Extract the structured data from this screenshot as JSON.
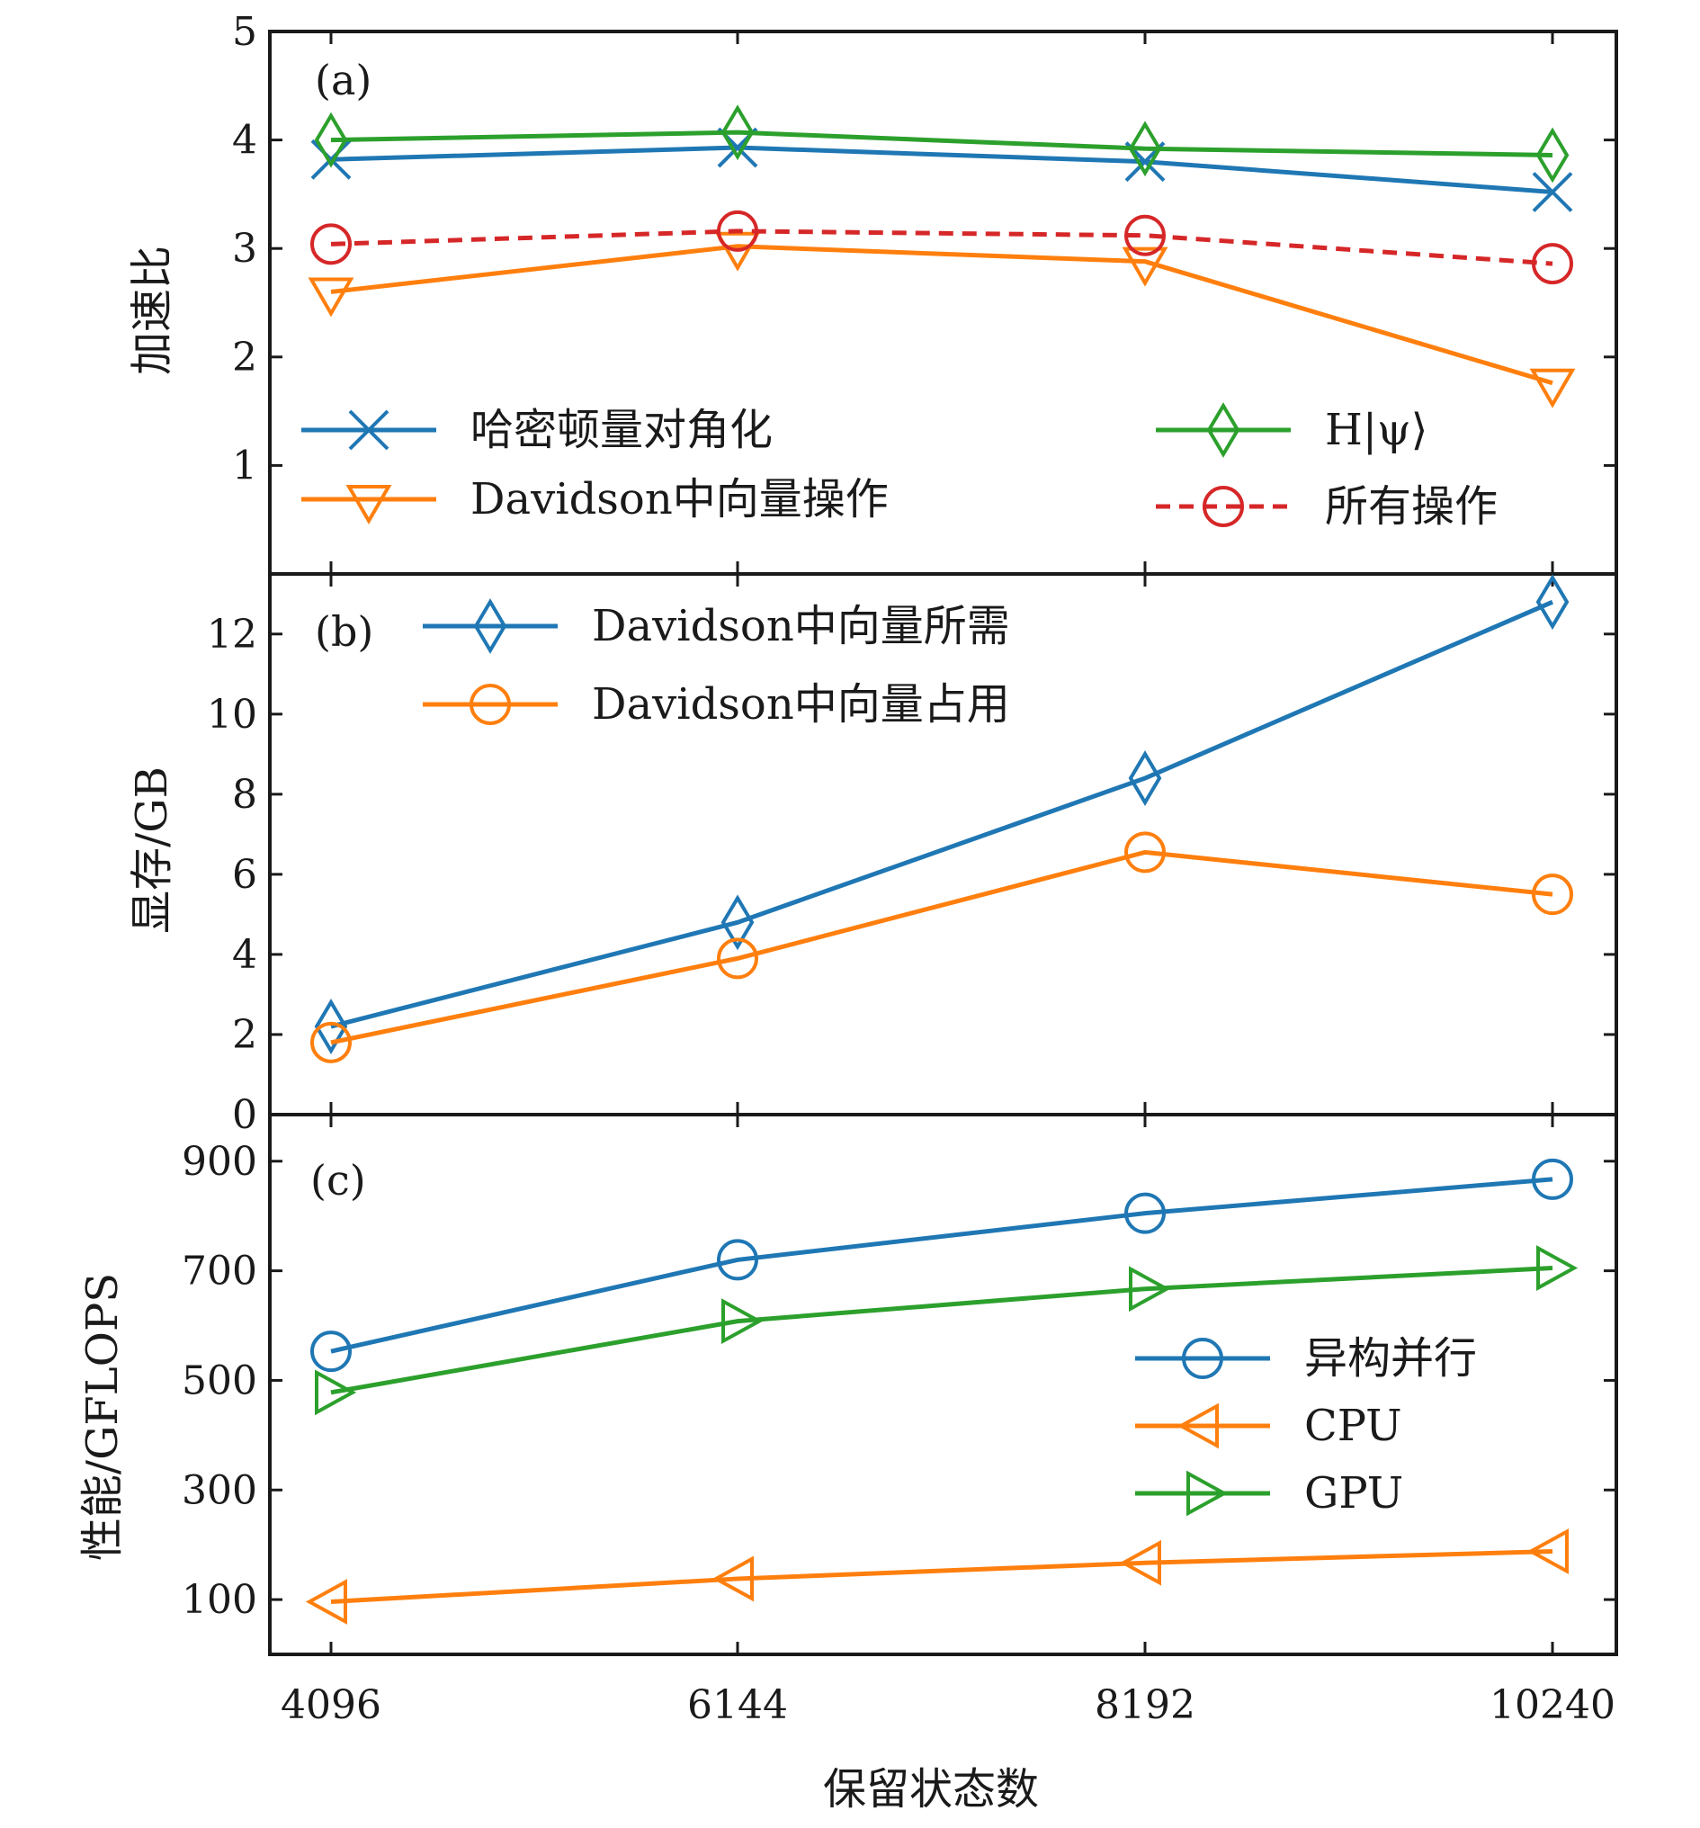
{
  "chart_data": [
    {
      "panel": "(a)",
      "type": "line",
      "x": [
        4096,
        6144,
        8192,
        10240
      ],
      "ylabel": "加速比",
      "ylim": [
        0,
        5
      ],
      "yticks": [
        1,
        2,
        3,
        4,
        5
      ],
      "series": [
        {
          "name": "哈密顿量对角化",
          "values": [
            3.82,
            3.93,
            3.8,
            3.52
          ],
          "color": "#1f77b4",
          "marker": "x",
          "dash": false
        },
        {
          "name": "Davidson中向量操作",
          "values": [
            2.6,
            3.02,
            2.88,
            1.76
          ],
          "color": "#ff7f0e",
          "marker": "triangle-down",
          "dash": false
        },
        {
          "name": "H|ψ⟩",
          "values": [
            4.0,
            4.07,
            3.92,
            3.86
          ],
          "color": "#2ca02c",
          "marker": "diamond",
          "dash": false
        },
        {
          "name": "所有操作",
          "values": [
            3.04,
            3.16,
            3.12,
            2.86
          ],
          "color": "#d62728",
          "marker": "circle",
          "dash": true
        }
      ],
      "legend": "bottom"
    },
    {
      "panel": "(b)",
      "type": "line",
      "x": [
        4096,
        6144,
        8192,
        10240
      ],
      "ylabel": "显存/GB",
      "ylim": [
        0,
        13.5
      ],
      "yticks": [
        0,
        2,
        4,
        6,
        8,
        10,
        12
      ],
      "series": [
        {
          "name": "Davidson中向量所需",
          "values": [
            2.2,
            4.8,
            8.4,
            12.8
          ],
          "color": "#1f77b4",
          "marker": "diamond",
          "dash": false
        },
        {
          "name": "Davidson中向量占用",
          "values": [
            1.8,
            3.9,
            6.55,
            5.5
          ],
          "color": "#ff7f0e",
          "marker": "circle",
          "dash": false
        }
      ],
      "legend": "top-left"
    },
    {
      "panel": "(c)",
      "type": "line",
      "x": [
        4096,
        6144,
        8192,
        10240
      ],
      "ylabel": "性能/GFLOPS",
      "ylim": [
        0,
        985
      ],
      "yticks": [
        100,
        300,
        500,
        700,
        900
      ],
      "series": [
        {
          "name": "异构并行",
          "values": [
            553,
            720,
            805,
            867
          ],
          "color": "#1f77b4",
          "marker": "circle",
          "dash": false
        },
        {
          "name": "CPU",
          "values": [
            96,
            138,
            167,
            188
          ],
          "color": "#ff7f0e",
          "marker": "triangle-left",
          "dash": false
        },
        {
          "name": "GPU",
          "values": [
            478,
            608,
            667,
            705
          ],
          "color": "#2ca02c",
          "marker": "triangle-right",
          "dash": false
        }
      ],
      "legend": "right"
    }
  ],
  "xlabel": "保留状态数",
  "xticks": [
    "4096",
    "6144",
    "8192",
    "10240"
  ]
}
